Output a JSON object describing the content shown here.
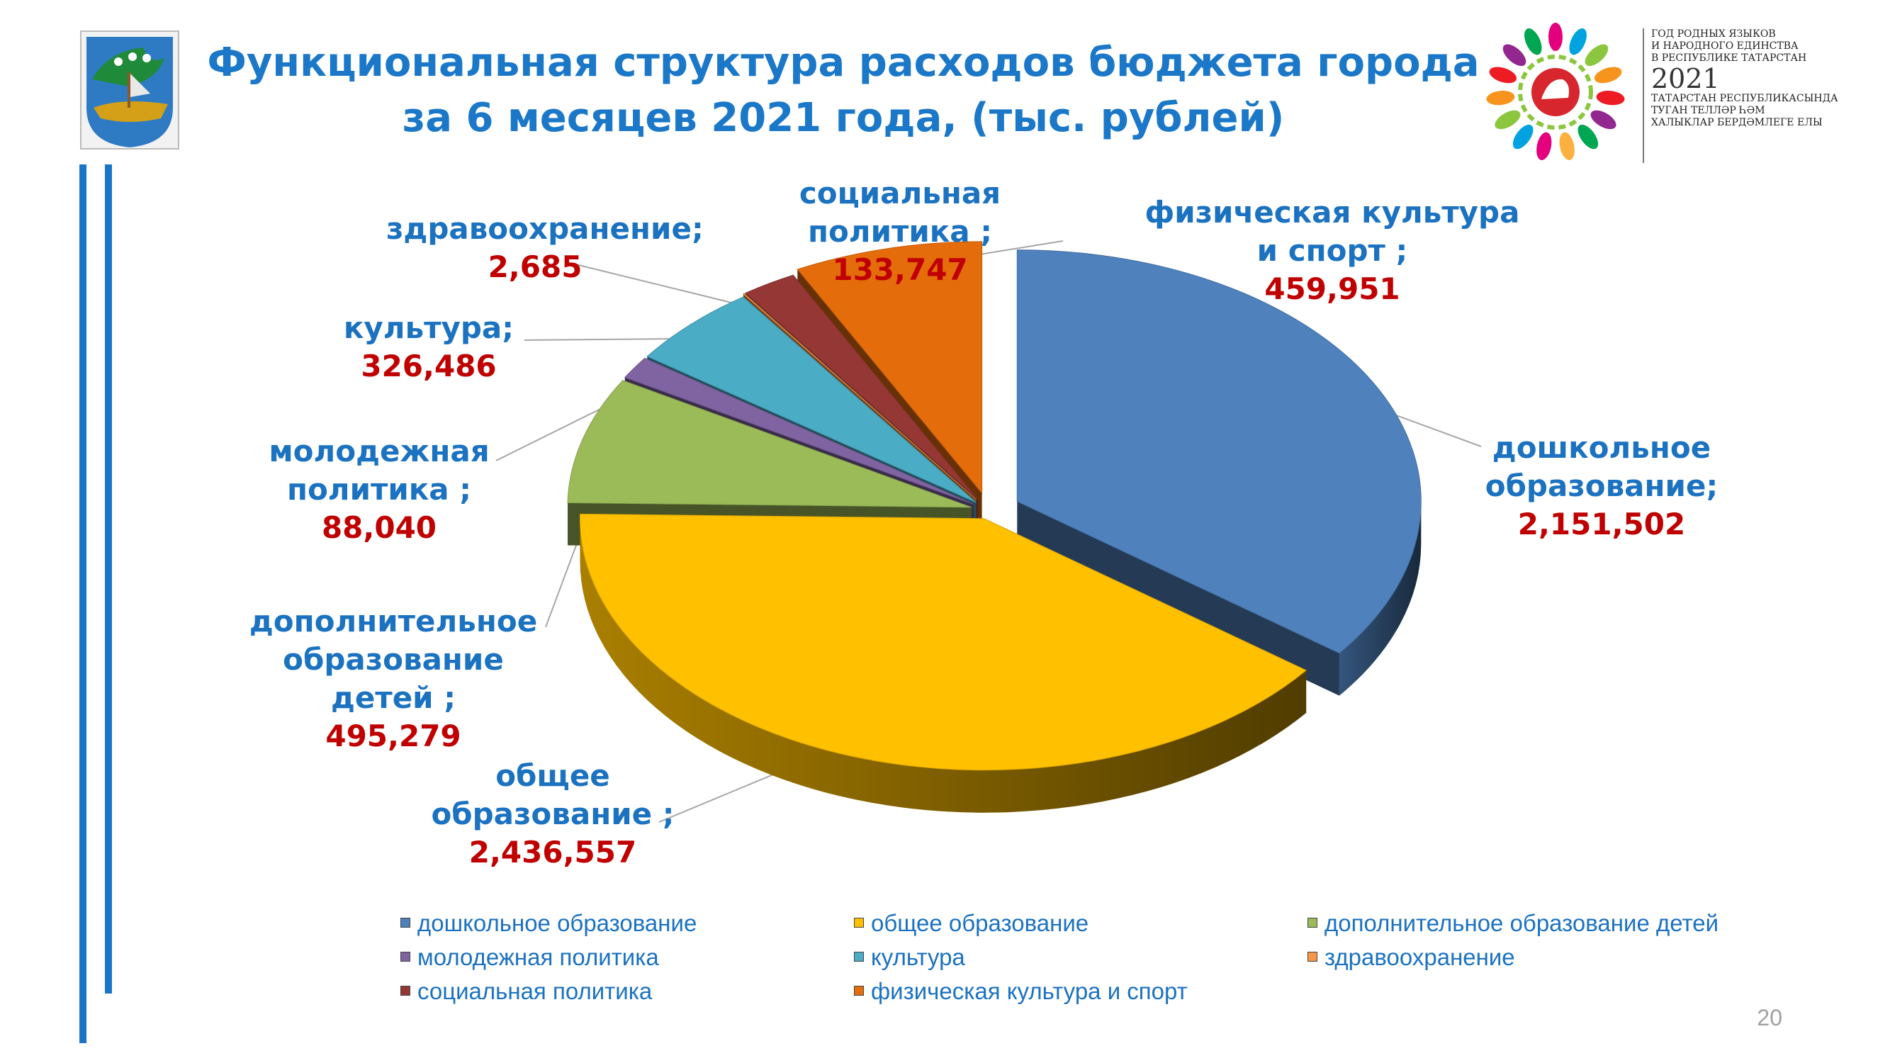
{
  "title": {
    "line1": "Функциональная структура расходов бюджета города",
    "line2": "за 6 месяцев 2021 года, (тыс. рублей)"
  },
  "colors": {
    "accent": "#1b78c8",
    "value": "#c00000"
  },
  "icons": {
    "city_emblem": "city-coat-of-arms-icon",
    "year_logo": "year-of-languages-2021-emblem-icon"
  },
  "year_logo": {
    "ru_line1": "ГОД РОДНЫХ ЯЗЫКОВ",
    "ru_line2": "И НАРОДНОГО ЕДИНСТВА",
    "ru_line3": "В РЕСПУБЛИКЕ ТАТАРСТАН",
    "year": "2021",
    "tt_line1": "ТАТАРСТАН РЕСПУБЛИКАСЫНДА",
    "tt_line2": "ТУГАН ТЕЛЛӘР ҺӘМ",
    "tt_line3": "ХАЛЫКЛАР БЕРДӘМЛЕГЕ ЕЛЫ"
  },
  "page_number": "20",
  "chart_data": {
    "type": "pie",
    "title": "Функциональная структура расходов бюджета города за 6 месяцев 2021 года, (тыс. рублей)",
    "legend_position": "bottom",
    "slices": [
      {
        "name": "дошкольное образование",
        "value": 2151502,
        "color": "#4f81bd",
        "label_l1": "дошкольное",
        "label_l2": "образование;",
        "label_l3": "",
        "value_text": "2,151,502"
      },
      {
        "name": "общее образование",
        "value": 2436557,
        "color": "#ffc000",
        "label_l1": "общее",
        "label_l2": "образование ;",
        "label_l3": "",
        "value_text": "2,436,557"
      },
      {
        "name": "дополнительное образование детей",
        "value": 495279,
        "color": "#9bbb59",
        "label_l1": "дополнительное",
        "label_l2": "образование",
        "label_l3": "детей ;",
        "value_text": "495,279"
      },
      {
        "name": "молодежная политика",
        "value": 88040,
        "color": "#8064a2",
        "label_l1": "молодежная",
        "label_l2": "политика ;",
        "label_l3": "",
        "value_text": "88,040"
      },
      {
        "name": "культура",
        "value": 326486,
        "color": "#4bacc6",
        "label_l1": "культура;",
        "label_l2": "",
        "label_l3": "",
        "value_text": "326,486"
      },
      {
        "name": "здравоохранение",
        "value": 2685,
        "color": "#f79646",
        "label_l1": "здравоохранение;",
        "label_l2": "",
        "label_l3": "",
        "value_text": "2,685"
      },
      {
        "name": "социальная политика",
        "value": 133747,
        "color": "#953735",
        "label_l1": "социальная",
        "label_l2": "политика ;",
        "label_l3": "",
        "value_text": "133,747"
      },
      {
        "name": "физическая культура и спорт",
        "value": 459951,
        "color": "#e46c0a",
        "label_l1": "физическая культура",
        "label_l2": "и спорт ;",
        "label_l3": "",
        "value_text": "459,951"
      }
    ]
  }
}
